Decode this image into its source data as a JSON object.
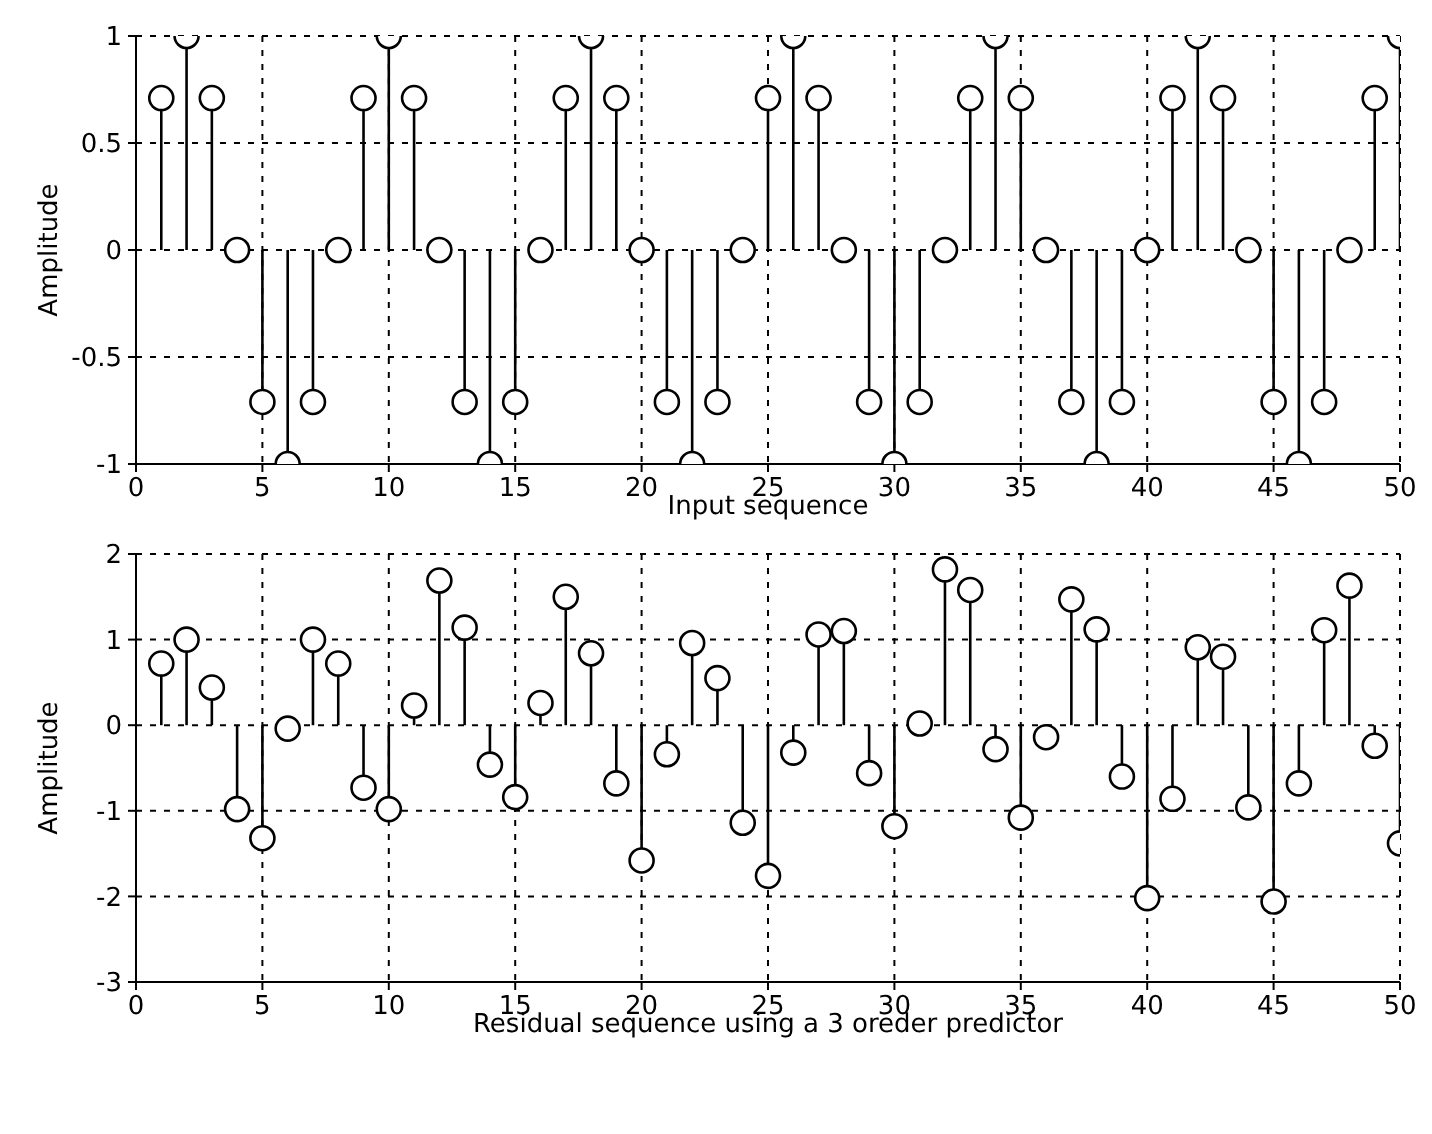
{
  "chart_data": [
    {
      "type": "lollipop",
      "xlabel": "Input sequence",
      "ylabel": "Amplitude",
      "x": [
        1,
        2,
        3,
        4,
        5,
        6,
        7,
        8,
        9,
        10,
        11,
        12,
        13,
        14,
        15,
        16,
        17,
        18,
        19,
        20,
        21,
        22,
        23,
        24,
        25,
        26,
        27,
        28,
        29,
        30,
        31,
        32,
        33,
        34,
        35,
        36,
        37,
        38,
        39,
        40,
        41,
        42,
        43,
        44,
        45,
        46,
        47,
        48,
        49,
        50
      ],
      "values": [
        0.71,
        1,
        0.71,
        0,
        -0.71,
        -1,
        -0.71,
        0,
        0.71,
        1,
        0.71,
        0,
        -0.71,
        -1,
        -0.71,
        0,
        0.71,
        1,
        0.71,
        0,
        -0.71,
        -1,
        -0.71,
        0,
        0.71,
        1,
        0.71,
        0,
        -0.71,
        -1,
        -0.71,
        0,
        0.71,
        1,
        0.71,
        0,
        -0.71,
        -1,
        -0.71,
        0,
        0.71,
        1,
        0.71,
        0,
        -0.71,
        -1,
        -0.71,
        0,
        0.71,
        1
      ],
      "color": "#000000",
      "xlim": [
        0,
        50
      ],
      "xticks": [
        0,
        5,
        10,
        15,
        20,
        25,
        30,
        35,
        40,
        45,
        50
      ],
      "ylim": [
        -1,
        1
      ],
      "yticks": [
        -1,
        -0.5,
        0,
        0.5,
        1
      ],
      "grid": true,
      "marker": "circle"
    },
    {
      "type": "lollipop",
      "xlabel": "Residual sequence using a 3 oreder predictor",
      "ylabel": "Amplitude",
      "x": [
        1,
        2,
        3,
        4,
        5,
        6,
        7,
        8,
        9,
        10,
        11,
        12,
        13,
        14,
        15,
        16,
        17,
        18,
        19,
        20,
        21,
        22,
        23,
        24,
        25,
        26,
        27,
        28,
        29,
        30,
        31,
        32,
        33,
        34,
        35,
        36,
        37,
        38,
        39,
        40,
        41,
        42,
        43,
        44,
        45,
        46,
        47,
        48,
        49,
        50
      ],
      "values": [
        0.72,
        1.0,
        0.44,
        -0.98,
        -1.32,
        -0.04,
        1.0,
        0.72,
        -0.73,
        -0.98,
        0.23,
        1.69,
        1.14,
        -0.46,
        -0.84,
        0.26,
        1.5,
        0.84,
        -0.68,
        -1.58,
        -0.34,
        0.96,
        0.55,
        -1.14,
        -1.76,
        -0.32,
        1.06,
        1.1,
        -0.56,
        -1.18,
        0.02,
        1.82,
        1.58,
        -0.28,
        -1.08,
        -0.14,
        1.47,
        1.12,
        -0.6,
        -2.02,
        -0.86,
        0.91,
        0.8,
        -0.96,
        -2.06,
        -0.68,
        1.11,
        1.63,
        -0.24,
        -1.38
      ],
      "color": "#000000",
      "xlim": [
        0,
        50
      ],
      "xticks": [
        0,
        5,
        10,
        15,
        20,
        25,
        30,
        35,
        40,
        45,
        50
      ],
      "ylim": [
        -3,
        2
      ],
      "yticks": [
        -3,
        -2,
        -1,
        0,
        1,
        2
      ],
      "grid": true,
      "marker": "circle"
    }
  ]
}
